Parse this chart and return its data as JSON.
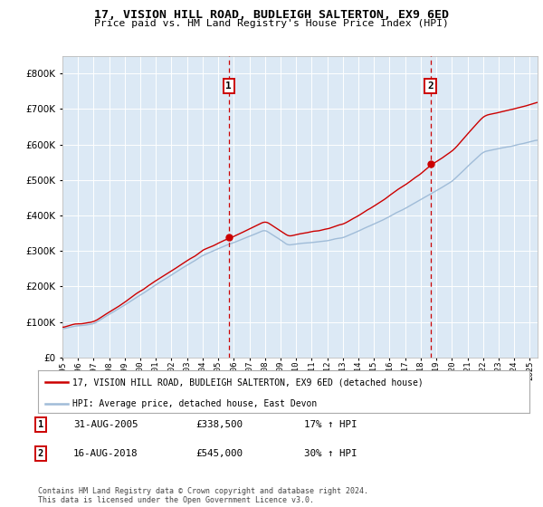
{
  "title1": "17, VISION HILL ROAD, BUDLEIGH SALTERTON, EX9 6ED",
  "title2": "Price paid vs. HM Land Registry's House Price Index (HPI)",
  "fig_bg_color": "#ffffff",
  "plot_bg_color": "#dce9f5",
  "hpi_color": "#a0bcd8",
  "price_color": "#cc0000",
  "sale1_date": 2005.67,
  "sale1_price": 338500,
  "sale2_date": 2018.62,
  "sale2_price": 545000,
  "legend1": "17, VISION HILL ROAD, BUDLEIGH SALTERTON, EX9 6ED (detached house)",
  "legend2": "HPI: Average price, detached house, East Devon",
  "annotation1_label": "1",
  "annotation1_date": "31-AUG-2005",
  "annotation1_price": "£338,500",
  "annotation1_hpi": "17% ↑ HPI",
  "annotation2_label": "2",
  "annotation2_date": "16-AUG-2018",
  "annotation2_price": "£545,000",
  "annotation2_hpi": "30% ↑ HPI",
  "footer": "Contains HM Land Registry data © Crown copyright and database right 2024.\nThis data is licensed under the Open Government Licence v3.0.",
  "ylim": [
    0,
    850000
  ],
  "xlim_start": 1995.0,
  "xlim_end": 2025.5
}
